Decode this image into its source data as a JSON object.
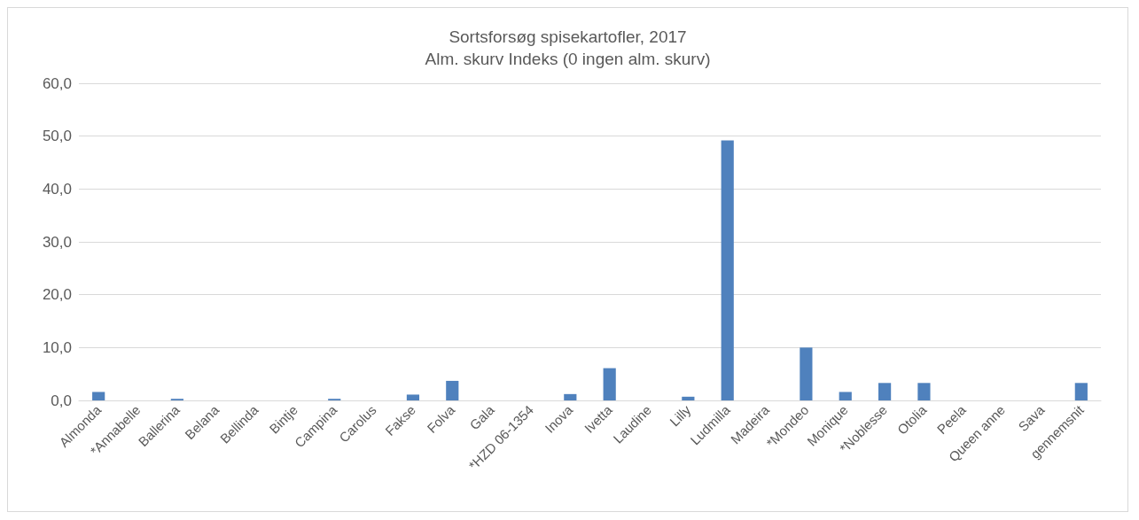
{
  "chart_data": {
    "type": "bar",
    "title": "Sortsforsøg spisekartofler, 2017",
    "subtitle": "Alm. skurv Indeks (0 ingen alm. skurv)",
    "categories": [
      "Almonda",
      "*Annabelle",
      "Ballerina",
      "Belana",
      "Bellinda",
      "Bintje",
      "Campina",
      "Carolus",
      "Fakse",
      "Folva",
      "Gala",
      "*HZD 06-1354",
      "Inova",
      "Ivetta",
      "Laudine",
      "Lilly",
      "Ludmilla",
      "Madeira",
      "*Mondeo",
      "Monique",
      "*Noblesse",
      "Otolia",
      "Peela",
      "Queen anne",
      "Sava",
      "gennemsnit"
    ],
    "values": [
      1.6,
      0,
      0.3,
      0,
      0,
      0,
      0.3,
      0,
      1.1,
      3.7,
      0,
      0,
      1.2,
      6.1,
      0,
      0.7,
      49.2,
      0,
      10.0,
      1.6,
      3.3,
      3.3,
      0,
      0,
      0,
      3.3
    ],
    "color": "#4f81bd",
    "ylim": [
      0,
      60
    ],
    "yticks": [
      {
        "value": 0,
        "label": "0,0"
      },
      {
        "value": 10,
        "label": "10,0"
      },
      {
        "value": 20,
        "label": "20,0"
      },
      {
        "value": 30,
        "label": "30,0"
      },
      {
        "value": 40,
        "label": "40,0"
      },
      {
        "value": 50,
        "label": "50,0"
      },
      {
        "value": 60,
        "label": "60,0"
      }
    ],
    "grid": "y"
  }
}
